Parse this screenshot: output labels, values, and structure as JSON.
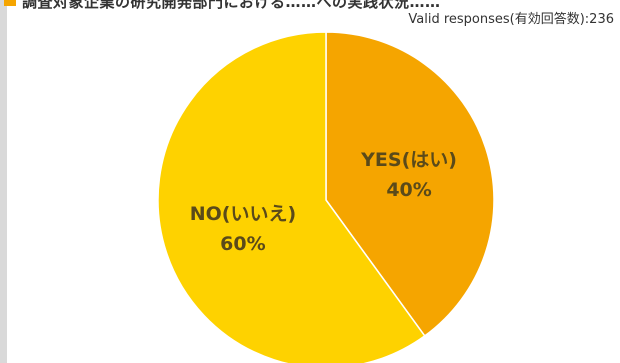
{
  "header": {
    "title_clipped": "調査対象企業の研究開発部門における……への実践状況……",
    "valid_responses": "Valid responses(有効回答数):236"
  },
  "colors": {
    "yes": "#f5a500",
    "no": "#fed200",
    "accent": "#f5a500",
    "left_bar": "#d9d9d9",
    "label_text": "#5a4a1a"
  },
  "chart_data": {
    "type": "pie",
    "categories": [
      "YES(はい)",
      "NO(いいえ)"
    ],
    "values": [
      40,
      60
    ],
    "value_labels": [
      "40%",
      "60%"
    ],
    "title": "",
    "legend": "none",
    "start_angle": "top",
    "direction": "clockwise"
  }
}
